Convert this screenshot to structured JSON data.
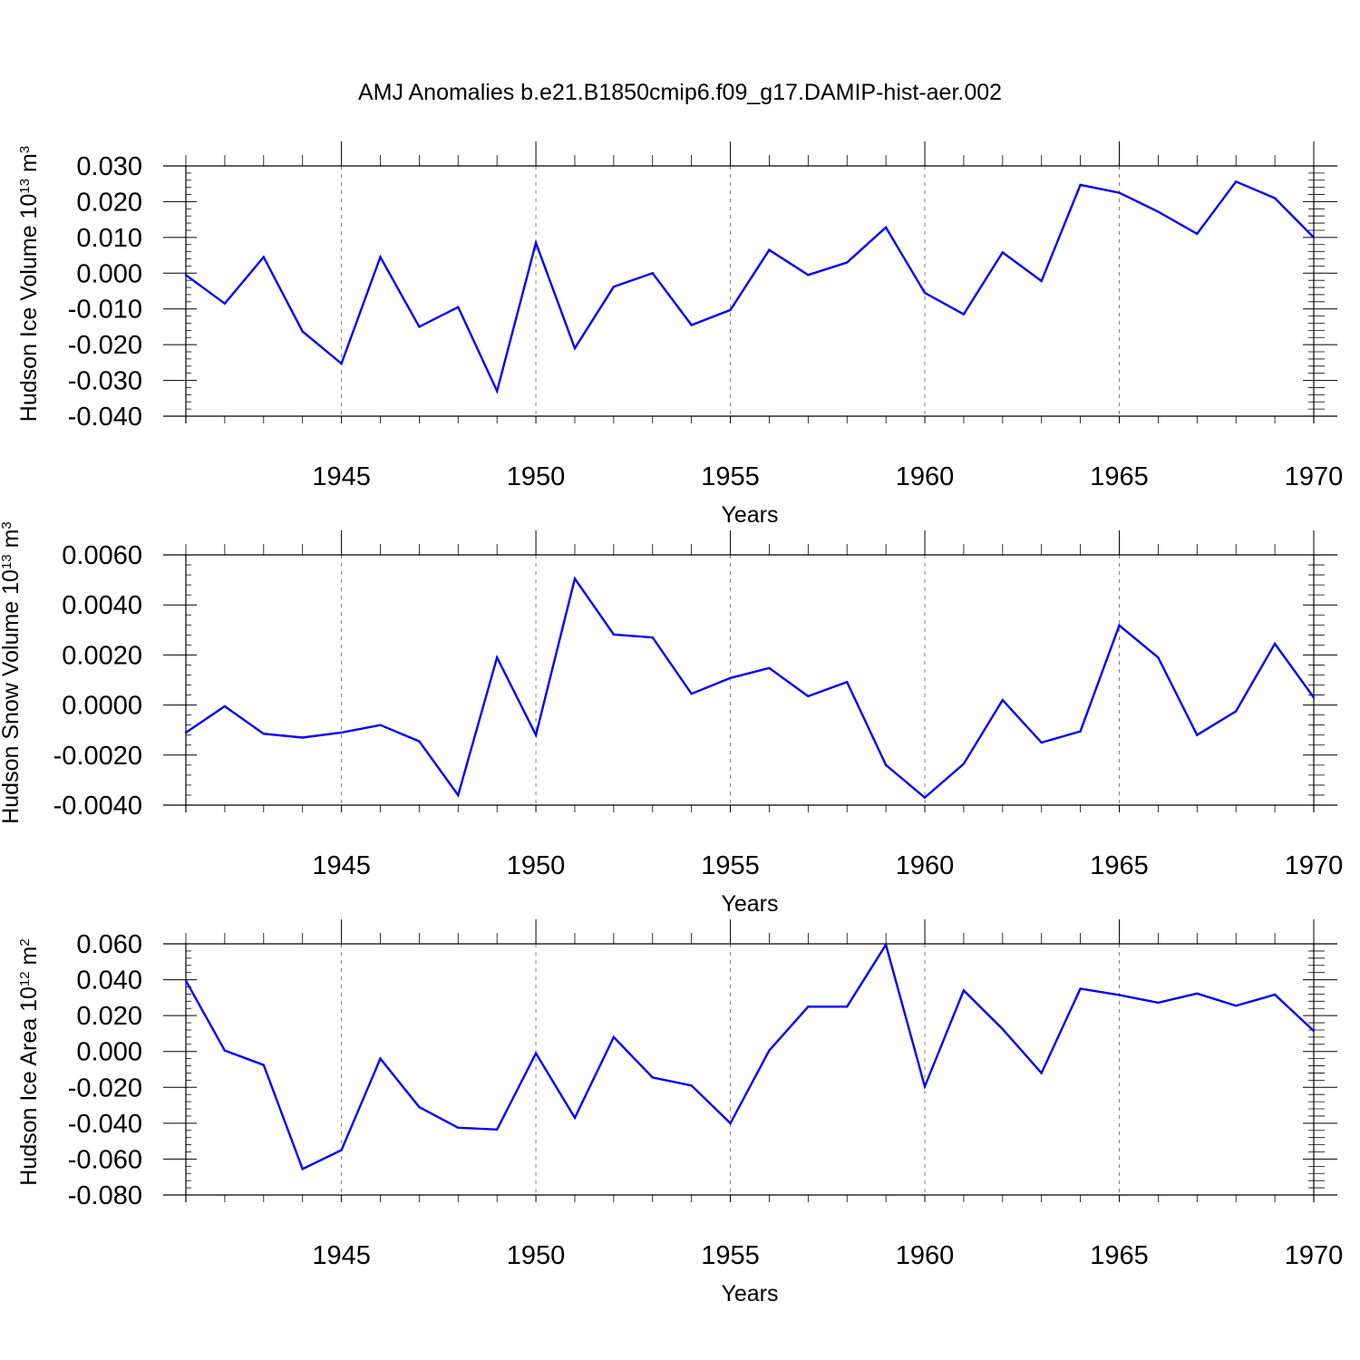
{
  "title": "AMJ Anomalies b.e21.B1850cmip6.f09_g17.DAMIP-hist-aer.002",
  "colors": {
    "line": "#0000ff",
    "axis": "#000000",
    "grid": "#808080"
  },
  "chart_data": [
    {
      "type": "line",
      "ylabel": {
        "base": "Hudson Ice Volume 10",
        "sup": "13",
        "unit": " m",
        "unit_sup": "3"
      },
      "xlabel": "Years",
      "xlim": [
        1941,
        1970
      ],
      "ylim": [
        -0.04,
        0.03
      ],
      "ytick_values": [
        -0.04,
        -0.03,
        -0.02,
        -0.01,
        0.0,
        0.01,
        0.02,
        0.03
      ],
      "ytick_labels": [
        "-0.040",
        "-0.030",
        "-0.020",
        "-0.010",
        "0.000",
        "0.010",
        "0.020",
        "0.030"
      ],
      "xtick_values": [
        1945,
        1950,
        1955,
        1960,
        1965,
        1970
      ],
      "xtick_labels": [
        "1945",
        "1950",
        "1955",
        "1960",
        "1965",
        "1970"
      ],
      "grid": "vertical dashed at major x ticks",
      "x": [
        1941,
        1942,
        1943,
        1944,
        1945,
        1946,
        1947,
        1948,
        1949,
        1950,
        1951,
        1952,
        1953,
        1954,
        1955,
        1956,
        1957,
        1958,
        1959,
        1960,
        1961,
        1962,
        1963,
        1964,
        1965,
        1966,
        1967,
        1968,
        1969,
        1970
      ],
      "y": [
        -0.0005,
        -0.0085,
        0.0045,
        -0.0163,
        -0.0253,
        0.0045,
        -0.015,
        -0.0095,
        -0.033,
        0.0085,
        -0.021,
        -0.0038,
        0.0,
        -0.0145,
        -0.0103,
        0.0065,
        -0.0005,
        0.003,
        0.0128,
        -0.0055,
        -0.0115,
        0.0058,
        -0.0022,
        0.0247,
        0.0225,
        0.0172,
        0.011,
        0.0256,
        0.021,
        0.01
      ]
    },
    {
      "type": "line",
      "ylabel": {
        "base": "Hudson Snow Volume 10",
        "sup": "13",
        "unit": " m",
        "unit_sup": "3"
      },
      "xlabel": "Years",
      "xlim": [
        1941,
        1970
      ],
      "ylim": [
        -0.004,
        0.006
      ],
      "ytick_values": [
        -0.004,
        -0.002,
        0.0,
        0.002,
        0.004,
        0.006
      ],
      "ytick_labels": [
        "-0.0040",
        "-0.0020",
        "0.0000",
        "0.0020",
        "0.0040",
        "0.0060"
      ],
      "xtick_values": [
        1945,
        1950,
        1955,
        1960,
        1965,
        1970
      ],
      "xtick_labels": [
        "1945",
        "1950",
        "1955",
        "1960",
        "1965",
        "1970"
      ],
      "grid": "vertical dashed at major x ticks",
      "x": [
        1941,
        1942,
        1943,
        1944,
        1945,
        1946,
        1947,
        1948,
        1949,
        1950,
        1951,
        1952,
        1953,
        1954,
        1955,
        1956,
        1957,
        1958,
        1959,
        1960,
        1961,
        1962,
        1963,
        1964,
        1965,
        1966,
        1967,
        1968,
        1969,
        1970
      ],
      "y": [
        -0.0011,
        -5e-05,
        -0.00115,
        -0.0013,
        -0.0011,
        -0.0008,
        -0.00145,
        -0.0036,
        0.0019,
        -0.0012,
        0.00505,
        0.00282,
        0.0027,
        0.00045,
        0.00108,
        0.00148,
        0.00035,
        0.00092,
        -0.0024,
        -0.0037,
        -0.00235,
        0.0002,
        -0.0015,
        -0.00105,
        0.00318,
        0.0019,
        -0.0012,
        -0.00025,
        0.00245,
        0.0003
      ]
    },
    {
      "type": "line",
      "ylabel": {
        "base": "Hudson Ice Area 10",
        "sup": "12",
        "unit": " m",
        "unit_sup": "2"
      },
      "xlabel": "Years",
      "xlim": [
        1941,
        1970
      ],
      "ylim": [
        -0.08,
        0.06
      ],
      "ytick_values": [
        -0.08,
        -0.06,
        -0.04,
        -0.02,
        0.0,
        0.02,
        0.04,
        0.06
      ],
      "ytick_labels": [
        "-0.080",
        "-0.060",
        "-0.040",
        "-0.020",
        "0.000",
        "0.020",
        "0.040",
        "0.060"
      ],
      "xtick_values": [
        1945,
        1950,
        1955,
        1960,
        1965,
        1970
      ],
      "xtick_labels": [
        "1945",
        "1950",
        "1955",
        "1960",
        "1965",
        "1970"
      ],
      "grid": "vertical dashed at major x ticks",
      "x": [
        1941,
        1942,
        1943,
        1944,
        1945,
        1946,
        1947,
        1948,
        1949,
        1950,
        1951,
        1952,
        1953,
        1954,
        1955,
        1956,
        1957,
        1958,
        1959,
        1960,
        1961,
        1962,
        1963,
        1964,
        1965,
        1966,
        1967,
        1968,
        1969,
        1970
      ],
      "y": [
        0.0395,
        0.0005,
        -0.0075,
        -0.0655,
        -0.055,
        -0.004,
        -0.031,
        -0.0425,
        -0.0435,
        -0.001,
        -0.037,
        0.008,
        -0.0145,
        -0.019,
        -0.04,
        0.0005,
        0.025,
        0.025,
        0.0595,
        -0.0195,
        0.034,
        0.0125,
        -0.012,
        0.035,
        0.0315,
        0.0272,
        0.0323,
        0.0255,
        0.0317,
        0.0115
      ]
    }
  ]
}
